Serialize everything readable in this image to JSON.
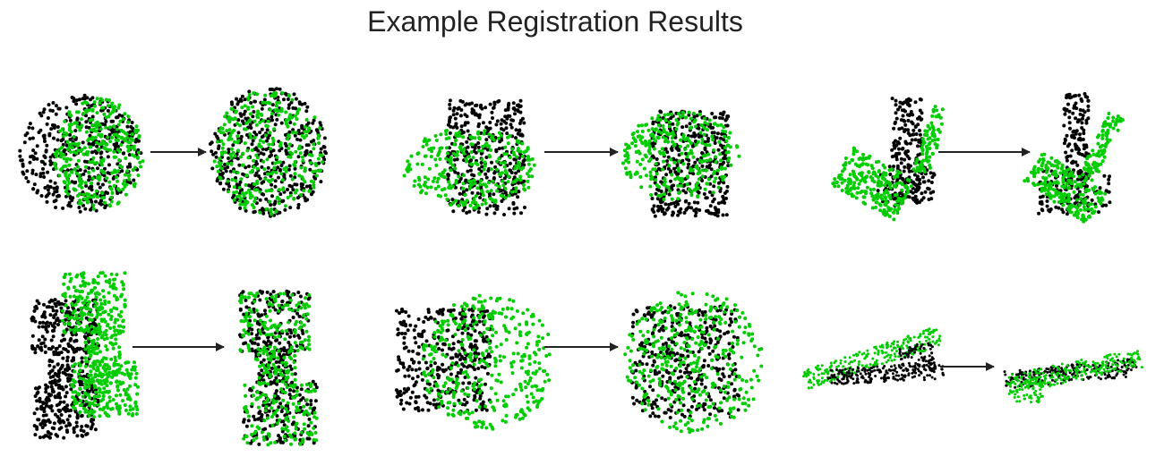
{
  "title": "Example Registration Results",
  "colors": {
    "source": "#00cc00",
    "target": "#000000",
    "arrow": "#222222"
  },
  "examples": [
    {
      "id": "sphere-blob"
    },
    {
      "id": "mug"
    },
    {
      "id": "bunny-ears"
    },
    {
      "id": "dumbbell"
    },
    {
      "id": "bucket"
    },
    {
      "id": "flat-object"
    }
  ]
}
